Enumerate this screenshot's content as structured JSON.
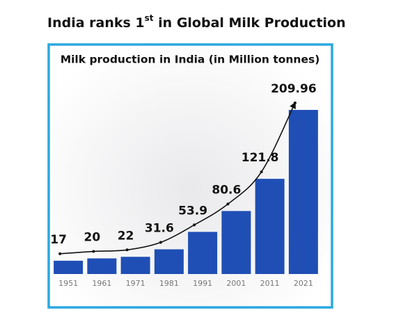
{
  "heading": {
    "main": "India ranks 1",
    "superscript": "st",
    "rest": " in Global Milk Production"
  },
  "chart_data": {
    "type": "bar",
    "title": "Milk production in India (in Million tonnes)",
    "categories": [
      "1951",
      "1961",
      "1971",
      "1981",
      "1991",
      "2001",
      "2011",
      "2021"
    ],
    "values": [
      17,
      20,
      22,
      31.6,
      53.9,
      80.6,
      121.8,
      209.96
    ],
    "color": "#1f4fb5",
    "ylim": [
      0,
      210
    ],
    "trend_line": true,
    "line_color": "#111111"
  }
}
